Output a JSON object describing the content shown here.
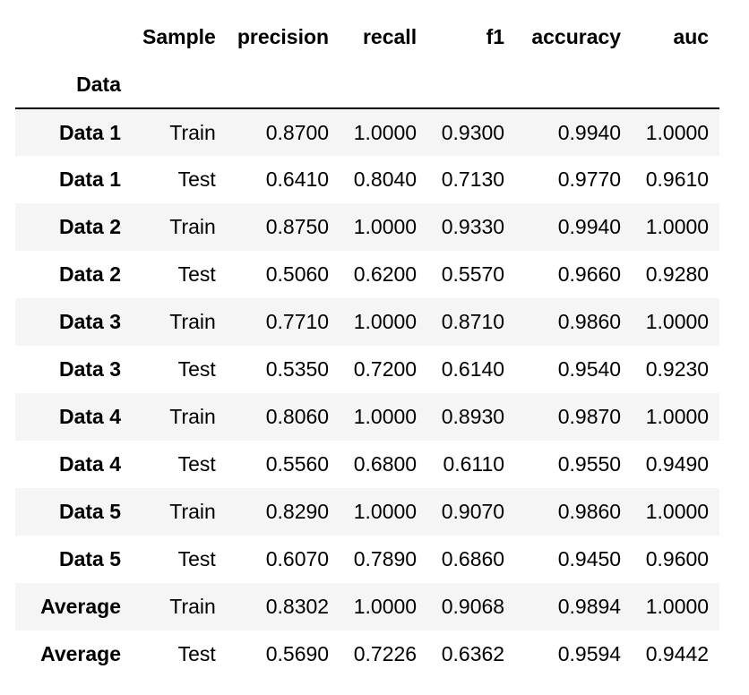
{
  "table": {
    "index_name": "Data",
    "columns": [
      "Sample",
      "precision",
      "recall",
      "f1",
      "accuracy",
      "auc"
    ],
    "rows": [
      {
        "index": "Data 1",
        "values": [
          "Train",
          "0.8700",
          "1.0000",
          "0.9300",
          "0.9940",
          "1.0000"
        ]
      },
      {
        "index": "Data 1",
        "values": [
          "Test",
          "0.6410",
          "0.8040",
          "0.7130",
          "0.9770",
          "0.9610"
        ]
      },
      {
        "index": "Data 2",
        "values": [
          "Train",
          "0.8750",
          "1.0000",
          "0.9330",
          "0.9940",
          "1.0000"
        ]
      },
      {
        "index": "Data 2",
        "values": [
          "Test",
          "0.5060",
          "0.6200",
          "0.5570",
          "0.9660",
          "0.9280"
        ]
      },
      {
        "index": "Data 3",
        "values": [
          "Train",
          "0.7710",
          "1.0000",
          "0.8710",
          "0.9860",
          "1.0000"
        ]
      },
      {
        "index": "Data 3",
        "values": [
          "Test",
          "0.5350",
          "0.7200",
          "0.6140",
          "0.9540",
          "0.9230"
        ]
      },
      {
        "index": "Data 4",
        "values": [
          "Train",
          "0.8060",
          "1.0000",
          "0.8930",
          "0.9870",
          "1.0000"
        ]
      },
      {
        "index": "Data 4",
        "values": [
          "Test",
          "0.5560",
          "0.6800",
          "0.6110",
          "0.9550",
          "0.9490"
        ]
      },
      {
        "index": "Data 5",
        "values": [
          "Train",
          "0.8290",
          "1.0000",
          "0.9070",
          "0.9860",
          "1.0000"
        ]
      },
      {
        "index": "Data 5",
        "values": [
          "Test",
          "0.6070",
          "0.7890",
          "0.6860",
          "0.9450",
          "0.9600"
        ]
      },
      {
        "index": "Average",
        "values": [
          "Train",
          "0.8302",
          "1.0000",
          "0.9068",
          "0.9894",
          "1.0000"
        ]
      },
      {
        "index": "Average",
        "values": [
          "Test",
          "0.5690",
          "0.7226",
          "0.6362",
          "0.9594",
          "0.9442"
        ]
      }
    ]
  }
}
